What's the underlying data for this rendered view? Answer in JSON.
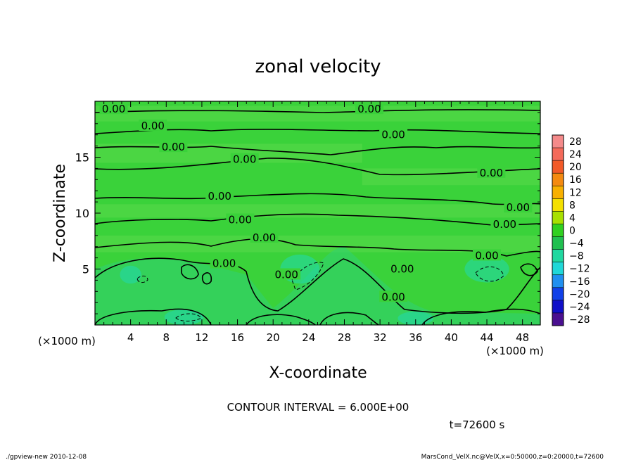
{
  "chart_data": {
    "type": "heatmap",
    "title": "zonal velocity",
    "xlabel": "X-coordinate",
    "ylabel": "Z-coordinate",
    "x_unit_left": "(×1000 m)",
    "x_unit_right": "(×1000 m)",
    "xlim": [
      0,
      50
    ],
    "ylim": [
      0,
      20
    ],
    "x_ticks": [
      4,
      8,
      12,
      16,
      20,
      24,
      28,
      32,
      36,
      40,
      44,
      48
    ],
    "y_ticks": [
      5,
      10,
      15
    ],
    "contour_interval_text": "CONTOUR INTERVAL = 6.000E+00",
    "time_text": "t=72600 s",
    "contour_label": "0.00",
    "colorbar": {
      "levels": [
        28,
        24,
        20,
        16,
        12,
        8,
        4,
        0,
        -4,
        -8,
        -12,
        -16,
        -20,
        -24,
        -28
      ],
      "colors": [
        "#f48a8a",
        "#f46a5a",
        "#f25a28",
        "#f48a10",
        "#f8b000",
        "#f4e000",
        "#a8e000",
        "#30d020",
        "#20c050",
        "#20d8a0",
        "#20d8d8",
        "#2090f0",
        "#1040e8",
        "#1010c8",
        "#4a1090"
      ]
    },
    "contour_labels_at": [
      {
        "x": 2.1,
        "z": 19.3
      },
      {
        "x": 30.8,
        "z": 19.3
      },
      {
        "x": 6.5,
        "z": 17.8
      },
      {
        "x": 8.8,
        "z": 15.9
      },
      {
        "x": 33.5,
        "z": 17.0
      },
      {
        "x": 16.8,
        "z": 14.8
      },
      {
        "x": 44.5,
        "z": 13.6
      },
      {
        "x": 14.0,
        "z": 11.5
      },
      {
        "x": 47.5,
        "z": 10.5
      },
      {
        "x": 16.3,
        "z": 9.4
      },
      {
        "x": 46.0,
        "z": 9.0
      },
      {
        "x": 19.0,
        "z": 7.8
      },
      {
        "x": 44.0,
        "z": 6.2
      },
      {
        "x": 14.5,
        "z": 5.5
      },
      {
        "x": 21.5,
        "z": 4.5
      },
      {
        "x": 34.5,
        "z": 5.0
      },
      {
        "x": 33.5,
        "z": 2.5
      }
    ]
  },
  "footer": {
    "left": "./gpview-new   2010-12-08",
    "right": "MarsCond_VelX.nc@VelX,x=0:50000,z=0:20000,t=72600"
  }
}
